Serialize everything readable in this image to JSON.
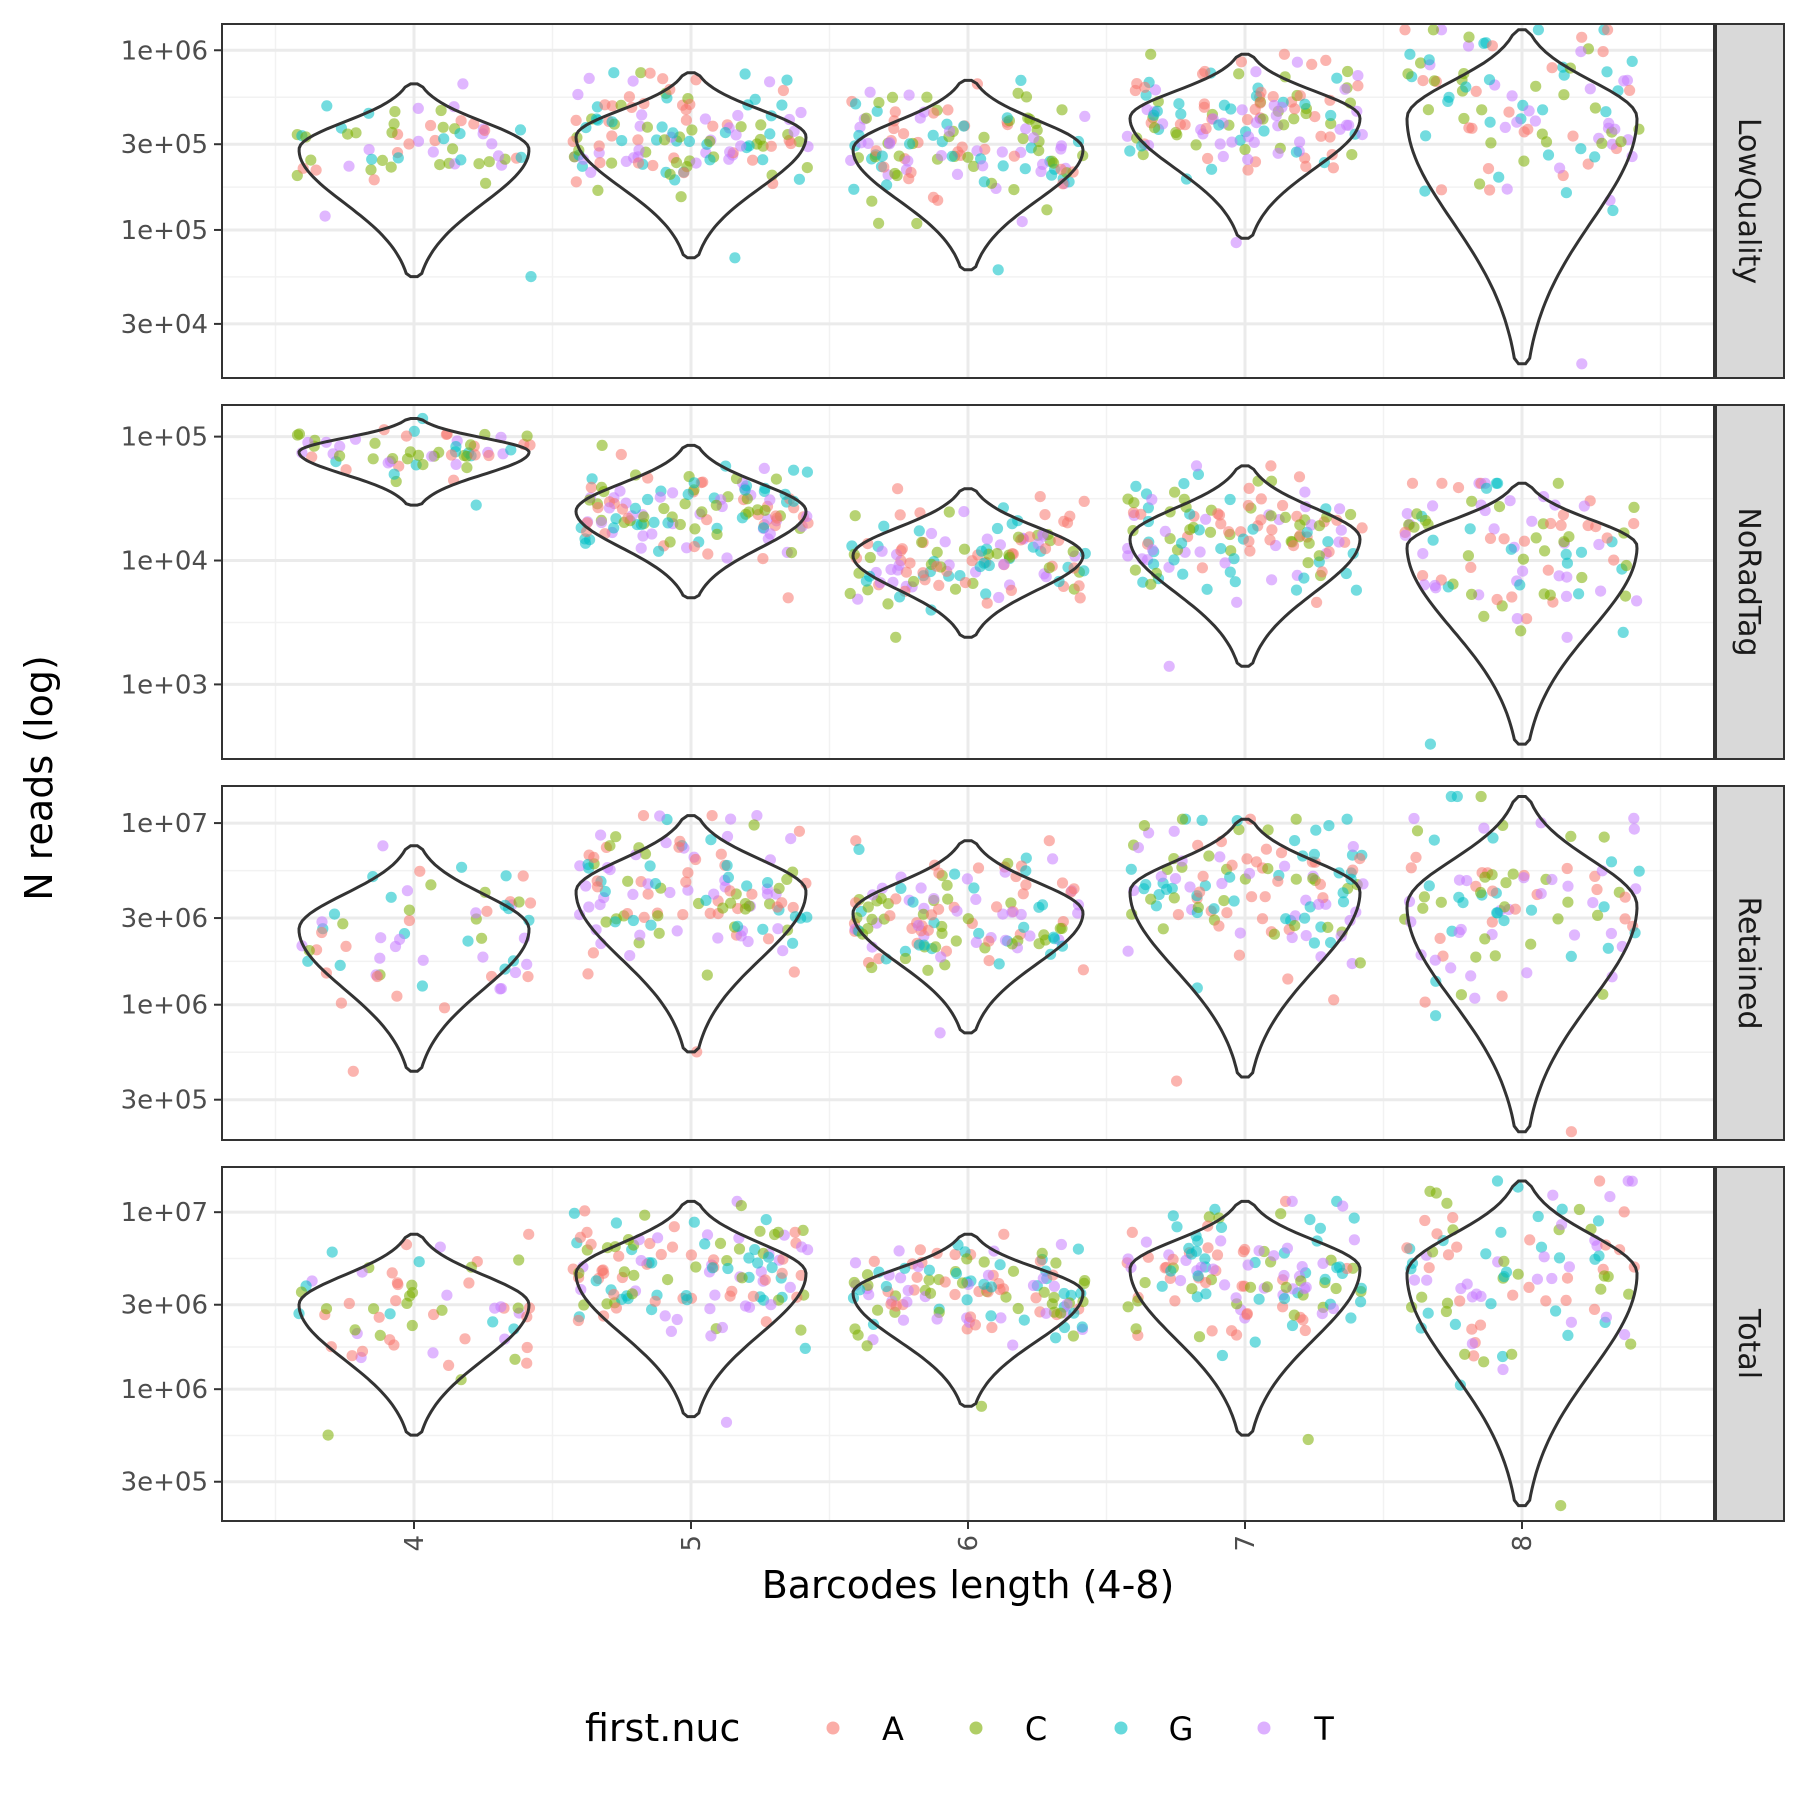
{
  "chart_data": {
    "type": "violin",
    "xlabel": "Barcodes length (4-8)",
    "ylabel": "N reads (log)",
    "y_scale": "log10",
    "grid": true,
    "legend_position": "bottom",
    "x_categories": [
      "4",
      "5",
      "6",
      "7",
      "8"
    ],
    "legend": {
      "title": "first.nuc",
      "entries": [
        {
          "label": "A",
          "color": "#F8766D"
        },
        {
          "label": "C",
          "color": "#7CAE00"
        },
        {
          "label": "G",
          "color": "#00BFC4"
        },
        {
          "label": "T",
          "color": "#C77CFF"
        }
      ]
    },
    "panels": [
      {
        "facet": "LowQuality",
        "ylim": [
          15000,
          1400000
        ],
        "y_ticks": [
          30000,
          100000,
          300000,
          1000000
        ],
        "y_tick_labels": [
          "3e+04",
          "1e+05",
          "3e+05",
          "1e+06"
        ],
        "violins": [
          {
            "x": "4",
            "min": 55000,
            "max": 650000,
            "median": 280000
          },
          {
            "x": "5",
            "min": 70000,
            "max": 750000,
            "median": 330000
          },
          {
            "x": "6",
            "min": 60000,
            "max": 680000,
            "median": 280000
          },
          {
            "x": "7",
            "min": 90000,
            "max": 950000,
            "median": 420000
          },
          {
            "x": "8",
            "min": 18000,
            "max": 1300000,
            "median": 420000
          }
        ],
        "points": [
          {
            "x": "4",
            "n": 60,
            "min": 55000,
            "max": 650000
          },
          {
            "x": "5",
            "n": 130,
            "min": 70000,
            "max": 750000
          },
          {
            "x": "6",
            "n": 130,
            "min": 60000,
            "max": 680000
          },
          {
            "x": "7",
            "n": 130,
            "min": 85000,
            "max": 950000
          },
          {
            "x": "8",
            "n": 100,
            "min": 18000,
            "max": 1300000
          }
        ]
      },
      {
        "facet": "NoRadTag",
        "ylim": [
          250,
          180000
        ],
        "y_ticks": [
          1000,
          10000,
          100000
        ],
        "y_tick_labels": [
          "1e+03",
          "1e+04",
          "1e+05"
        ],
        "violins": [
          {
            "x": "4",
            "min": 28000,
            "max": 140000,
            "median": 75000
          },
          {
            "x": "5",
            "min": 5000,
            "max": 85000,
            "median": 25000
          },
          {
            "x": "6",
            "min": 2400,
            "max": 38000,
            "median": 11000
          },
          {
            "x": "7",
            "min": 1400,
            "max": 58000,
            "median": 15000
          },
          {
            "x": "8",
            "min": 330,
            "max": 42000,
            "median": 13000
          }
        ],
        "points": [
          {
            "x": "4",
            "n": 60,
            "min": 28000,
            "max": 140000
          },
          {
            "x": "5",
            "n": 130,
            "min": 5000,
            "max": 85000
          },
          {
            "x": "6",
            "n": 130,
            "min": 2400,
            "max": 38000
          },
          {
            "x": "7",
            "n": 130,
            "min": 1400,
            "max": 58000
          },
          {
            "x": "8",
            "n": 100,
            "min": 330,
            "max": 42000
          }
        ]
      },
      {
        "facet": "Retained",
        "ylim": [
          180000,
          16000000
        ],
        "y_ticks": [
          300000,
          1000000,
          3000000,
          10000000
        ],
        "y_tick_labels": [
          "3e+05",
          "1e+06",
          "3e+06",
          "1e+07"
        ],
        "violins": [
          {
            "x": "4",
            "min": 430000,
            "max": 7500000,
            "median": 2600000
          },
          {
            "x": "5",
            "min": 550000,
            "max": 11000000,
            "median": 4200000
          },
          {
            "x": "6",
            "min": 700000,
            "max": 8000000,
            "median": 3200000
          },
          {
            "x": "7",
            "min": 400000,
            "max": 10500000,
            "median": 4200000
          },
          {
            "x": "8",
            "min": 200000,
            "max": 14000000,
            "median": 3500000
          }
        ],
        "points": [
          {
            "x": "4",
            "n": 60,
            "min": 430000,
            "max": 7500000
          },
          {
            "x": "5",
            "n": 130,
            "min": 550000,
            "max": 11000000
          },
          {
            "x": "6",
            "n": 130,
            "min": 700000,
            "max": 8000000
          },
          {
            "x": "7",
            "n": 130,
            "min": 380000,
            "max": 10500000
          },
          {
            "x": "8",
            "n": 100,
            "min": 200000,
            "max": 14000000
          }
        ]
      },
      {
        "facet": "Total",
        "ylim": [
          180000,
          18000000
        ],
        "y_ticks": [
          300000,
          1000000,
          3000000,
          10000000
        ],
        "y_tick_labels": [
          "3e+05",
          "1e+06",
          "3e+06",
          "1e+07"
        ],
        "violins": [
          {
            "x": "4",
            "min": 550000,
            "max": 7500000,
            "median": 3000000
          },
          {
            "x": "5",
            "min": 700000,
            "max": 11500000,
            "median": 4500000
          },
          {
            "x": "6",
            "min": 800000,
            "max": 7500000,
            "median": 3500000
          },
          {
            "x": "7",
            "min": 550000,
            "max": 11500000,
            "median": 4800000
          },
          {
            "x": "8",
            "min": 220000,
            "max": 15000000,
            "median": 4500000
          }
        ],
        "points": [
          {
            "x": "4",
            "n": 60,
            "min": 550000,
            "max": 7500000
          },
          {
            "x": "5",
            "n": 130,
            "min": 650000,
            "max": 11500000
          },
          {
            "x": "6",
            "n": 130,
            "min": 800000,
            "max": 7500000
          },
          {
            "x": "7",
            "n": 130,
            "min": 520000,
            "max": 11500000
          },
          {
            "x": "8",
            "n": 100,
            "min": 220000,
            "max": 15000000
          }
        ]
      }
    ]
  }
}
